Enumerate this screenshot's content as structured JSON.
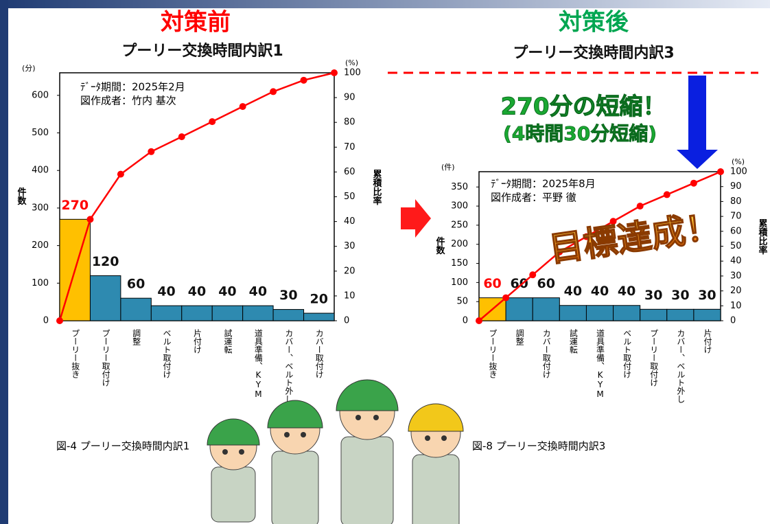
{
  "headers": [
    "対策前",
    "対策後"
  ],
  "callout": [
    "270分の短縮！",
    "(4時間30分短縮)"
  ],
  "stamp": "目標達成！",
  "chart_data": [
    {
      "type": "pareto",
      "title": "プーリー交換時間内訳1",
      "caption": "図-4 プーリー交換時間内訳1",
      "notes": [
        "ﾃﾞｰﾀ期間：2025年2月",
        "図作成者：竹内 基次"
      ],
      "y_unit": "(分)",
      "ylabel": "件数",
      "y2_unit": "(%)",
      "y2label": "累積比率",
      "categories": [
        "プーリー抜き",
        "プーリー取付け",
        "調整",
        "ベルト取付け",
        "片付け",
        "試運転",
        "道具準備、KYM",
        "カバー、ベルト外し",
        "カバー取付け"
      ],
      "values": [
        270,
        120,
        60,
        40,
        40,
        40,
        40,
        30,
        20
      ],
      "cumulative": [
        0,
        40.9,
        59.1,
        68.2,
        74.2,
        80.3,
        86.4,
        92.4,
        97.0,
        100
      ],
      "color": "#2e8ab0",
      "highlight_color": "#ffc000",
      "highlight_label_color": "#ff0000",
      "line_color": "#ff0000",
      "ylim": [
        0,
        660
      ],
      "yticks": [
        0,
        100,
        200,
        300,
        400,
        500,
        600
      ],
      "y2lim": [
        0,
        100
      ],
      "y2ticks": [
        0,
        10,
        20,
        30,
        40,
        50,
        60,
        70,
        80,
        90,
        100
      ]
    },
    {
      "type": "pareto",
      "title": "プーリー交換時間内訳3",
      "caption": "図-8 プーリー交換時間内訳3",
      "notes": [
        "ﾃﾞｰﾀ期間：2025年8月",
        "図作成者：平野 徹"
      ],
      "y_unit": "(件)",
      "ylabel": "件数",
      "y2_unit": "(%)",
      "y2label": "累積比率",
      "categories": [
        "プーリー抜き",
        "調整",
        "カバー取付け",
        "試運転",
        "道具準備、KYM",
        "ベルト取付け",
        "プーリー取付け",
        "カバー、ベルト外し",
        "片付け"
      ],
      "values": [
        60,
        60,
        60,
        40,
        40,
        40,
        30,
        30,
        30
      ],
      "cumulative": [
        0,
        15.4,
        30.8,
        46.2,
        56.4,
        66.7,
        76.9,
        84.6,
        92.3,
        100
      ],
      "color": "#2e8ab0",
      "highlight_color": "#ffc000",
      "highlight_label_color": "#ff0000",
      "line_color": "#ff0000",
      "ylim": [
        0,
        390
      ],
      "yticks": [
        0,
        50,
        100,
        150,
        200,
        250,
        300,
        350
      ],
      "y2lim": [
        0,
        100
      ],
      "y2ticks": [
        0,
        10,
        20,
        30,
        40,
        50,
        60,
        70,
        80,
        90,
        100
      ]
    }
  ]
}
